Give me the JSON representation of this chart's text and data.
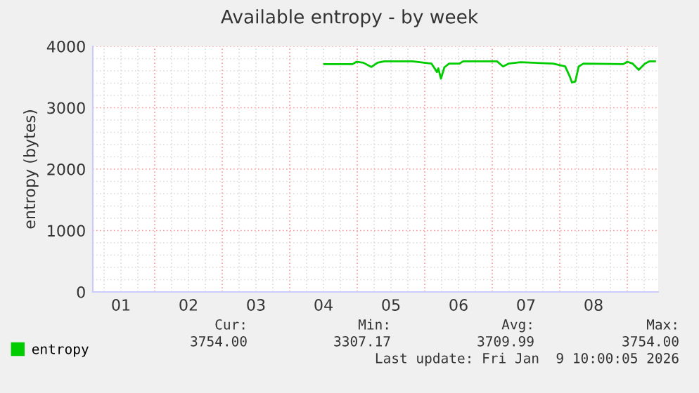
{
  "chart_data": {
    "type": "line",
    "title": "Available entropy - by week",
    "ylabel": "entropy (bytes)",
    "xlim": [
      1.083,
      9.458
    ],
    "ylim": [
      0,
      4000
    ],
    "xticks": [
      {
        "value": 1.5,
        "label": "01"
      },
      {
        "value": 2.5,
        "label": "02"
      },
      {
        "value": 3.5,
        "label": "03"
      },
      {
        "value": 4.5,
        "label": "04"
      },
      {
        "value": 5.5,
        "label": "05"
      },
      {
        "value": 6.5,
        "label": "06"
      },
      {
        "value": 7.5,
        "label": "07"
      },
      {
        "value": 8.5,
        "label": "08"
      }
    ],
    "yticks": [
      0,
      1000,
      2000,
      3000,
      4000
    ],
    "grid": true,
    "legend": "bottom left",
    "marker": "none",
    "line_style": "solid",
    "series": [
      {
        "name": "entropy",
        "color": "#00cc00",
        "x": [
          4.51,
          4.93,
          4.99,
          5.09,
          5.21,
          5.3,
          5.4,
          5.82,
          6.1,
          6.15,
          6.18,
          6.2,
          6.24,
          6.29,
          6.36,
          6.51,
          6.57,
          7.07,
          7.16,
          7.24,
          7.42,
          7.9,
          8.08,
          8.15,
          8.18,
          8.23,
          8.28,
          8.35,
          8.94,
          9.0,
          9.08,
          9.17,
          9.26,
          9.33,
          9.41
        ],
        "values": [
          3710,
          3710,
          3748,
          3733,
          3664,
          3733,
          3756,
          3756,
          3718,
          3634,
          3580,
          3641,
          3473,
          3657,
          3718,
          3718,
          3756,
          3756,
          3672,
          3718,
          3741,
          3718,
          3672,
          3504,
          3412,
          3427,
          3672,
          3718,
          3710,
          3748,
          3718,
          3618,
          3718,
          3756,
          3756
        ]
      }
    ],
    "annotations": [
      "Cur:",
      "Min:",
      "Avg:",
      "Max:",
      "3754.00",
      "3307.17",
      "3709.99",
      "3754.00",
      "Last update: Fri Jan  9 10:00:05 2026"
    ]
  }
}
